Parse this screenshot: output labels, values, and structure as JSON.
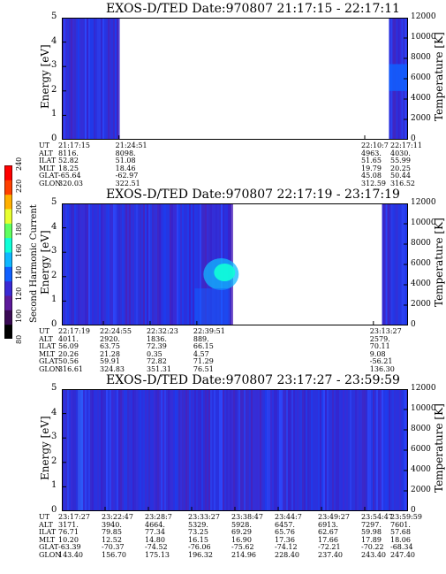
{
  "colorbar": {
    "title": "Second Harmonic Current",
    "labels": [
      "80",
      "100",
      "120",
      "140",
      "160",
      "180",
      "200",
      "220",
      "240"
    ],
    "colors": [
      "#000000",
      "#3a0a55",
      "#5d1a9a",
      "#3b2ad4",
      "#1060ff",
      "#10b8ff",
      "#10ffd8",
      "#60ff60",
      "#e8ff30",
      "#ffb000",
      "#ff4000",
      "#ff0000"
    ]
  },
  "chart_data": [
    {
      "type": "heatmap",
      "title": "EXOS-D/TED   Date:970807   21:17:15 - 22:17:11",
      "ylabel": "Energy [eV]",
      "y2label": "Temperature [K]",
      "ylim": [
        0,
        5
      ],
      "y2lim": [
        0,
        12000
      ],
      "yticks": [
        "0",
        "1",
        "2",
        "3",
        "4",
        "5"
      ],
      "y2ticks": [
        "0",
        "2000",
        "4000",
        "6000",
        "8000",
        "10000",
        "12000"
      ],
      "data_intervals": [
        [
          0.0,
          0.165
        ],
        [
          0.945,
          1.0
        ]
      ],
      "table_labels": [
        "UT",
        "ALT",
        "ILAT",
        "MLT",
        "GLAT",
        "GLON"
      ],
      "columns": [
        {
          "pos": 0.0,
          "values": [
            "21:17:15",
            "8116.",
            "52.82",
            "18.25",
            "-65.64",
            "320.03"
          ]
        },
        {
          "pos": 0.165,
          "values": [
            "21:24:51",
            "8098.",
            "51.08",
            "18.46",
            "-62.97",
            "322.51"
          ]
        },
        {
          "pos": 0.875,
          "values": [
            "22:10:7",
            "4963.",
            "51.65",
            "19.79",
            "45.08",
            "312.59"
          ]
        },
        {
          "pos": 1.0,
          "values": [
            "22:17:11",
            "4030.",
            "55.99",
            "20.25",
            "50.44",
            "316.52"
          ]
        }
      ]
    },
    {
      "type": "heatmap",
      "title": "EXOS-D/TED   Date:970807   22:17:19 - 23:17:19",
      "ylabel": "Energy [eV]",
      "y2label": "Temperature [K]",
      "ylim": [
        0,
        5
      ],
      "y2lim": [
        0,
        12000
      ],
      "yticks": [
        "0",
        "1",
        "2",
        "3",
        "4",
        "5"
      ],
      "y2ticks": [
        "0",
        "2000",
        "4000",
        "6000",
        "8000",
        "10000",
        "12000"
      ],
      "data_intervals": [
        [
          0.0,
          0.49
        ],
        [
          0.925,
          1.0
        ]
      ],
      "table_labels": [
        "UT",
        "ALT",
        "ILAT",
        "MLT",
        "GLAT",
        "GLON"
      ],
      "columns": [
        {
          "pos": 0.0,
          "values": [
            "22:17:19",
            "4011.",
            "56.09",
            "20.26",
            "50.56",
            "316.61"
          ]
        },
        {
          "pos": 0.12,
          "values": [
            "22:24:55",
            "2920.",
            "63.75",
            "21.28",
            "59.91",
            "324.83"
          ]
        },
        {
          "pos": 0.255,
          "values": [
            "22:32:23",
            "1836.",
            "72.39",
            "0.35",
            "72.82",
            "351.31"
          ]
        },
        {
          "pos": 0.39,
          "values": [
            "22:39:51",
            "889.",
            "66.15",
            "4.57",
            "71.29",
            "76.51"
          ]
        },
        {
          "pos": 0.9,
          "values": [
            "23:13:27",
            "2579.",
            "70.11",
            "9.08",
            "-56.21",
            "136.30"
          ]
        }
      ]
    },
    {
      "type": "heatmap",
      "title": "EXOS-D/TED   Date:970807   23:17:27 - 23:59:59",
      "ylabel": "Energy [eV]",
      "y2label": "Temperature [K]",
      "ylim": [
        0,
        5
      ],
      "y2lim": [
        0,
        12000
      ],
      "yticks": [
        "0",
        "1",
        "2",
        "3",
        "4",
        "5"
      ],
      "y2ticks": [
        "0",
        "2000",
        "4000",
        "6000",
        "8000",
        "10000",
        "12000"
      ],
      "data_intervals": [
        [
          0.0,
          1.0
        ]
      ],
      "table_labels": [
        "UT",
        "ALT",
        "ILAT",
        "MLT",
        "GLAT",
        "GLON"
      ],
      "columns": [
        {
          "pos": 0.0,
          "values": [
            "23:17:27",
            "3171.",
            "76.71",
            "10.20",
            "-63.39",
            "143.40"
          ]
        },
        {
          "pos": 0.125,
          "values": [
            "23:22:47",
            "3940.",
            "79.85",
            "12.52",
            "-70.37",
            "156.70"
          ]
        },
        {
          "pos": 0.25,
          "values": [
            "23:28:7",
            "4664.",
            "77.34",
            "14.80",
            "-74.52",
            "175.13"
          ]
        },
        {
          "pos": 0.375,
          "values": [
            "23:33:27",
            "5329.",
            "73.25",
            "16.15",
            "-76.06",
            "196.32"
          ]
        },
        {
          "pos": 0.5,
          "values": [
            "23:38:47",
            "5928.",
            "69.29",
            "16.90",
            "-75.62",
            "214.96"
          ]
        },
        {
          "pos": 0.625,
          "values": [
            "23:44:7",
            "6457.",
            "65.76",
            "17.36",
            "-74.12",
            "228.40"
          ]
        },
        {
          "pos": 0.75,
          "values": [
            "23:49:27",
            "6913.",
            "62.67",
            "17.66",
            "-72.21",
            "237.40"
          ]
        },
        {
          "pos": 0.875,
          "values": [
            "23:54:47",
            "7297.",
            "59.98",
            "17.89",
            "-70.22",
            "243.40"
          ]
        },
        {
          "pos": 1.0,
          "values": [
            "23:59:59",
            "7601.",
            "57.68",
            "18.06",
            "-68.34",
            "247.40"
          ]
        }
      ]
    }
  ]
}
